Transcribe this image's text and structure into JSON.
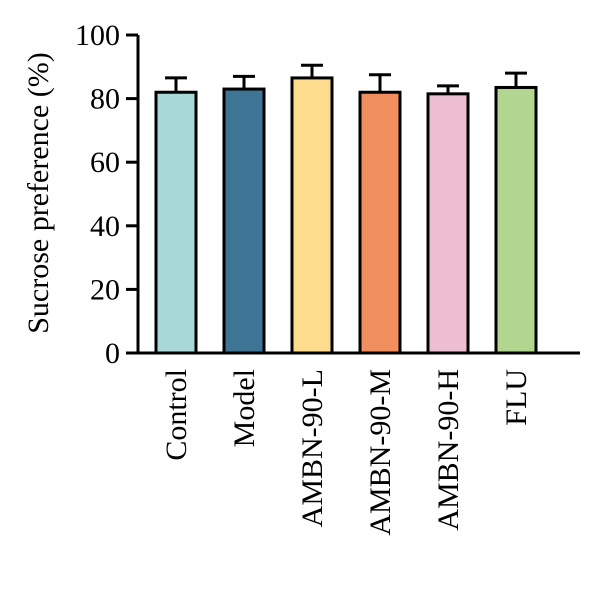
{
  "chart_data": {
    "type": "bar",
    "title": "",
    "xlabel": "",
    "ylabel": "Sucrose preference (%)",
    "ylim": [
      0,
      100
    ],
    "yticks": [
      0,
      20,
      40,
      60,
      80,
      100
    ],
    "categories": [
      "Control",
      "Model",
      "AMBN-90-L",
      "AMBN-90-M",
      "AMBN-90-H",
      "FLU"
    ],
    "values": [
      82,
      83,
      86.5,
      82,
      81.5,
      83.5
    ],
    "errors": [
      4.5,
      4.0,
      4.0,
      5.5,
      2.5,
      4.5
    ],
    "colors": [
      "#a8d8d8",
      "#3e7595",
      "#fddd8d",
      "#f18e5e",
      "#eebfd0",
      "#b2d68f"
    ],
    "legend": "none",
    "grid": false
  }
}
